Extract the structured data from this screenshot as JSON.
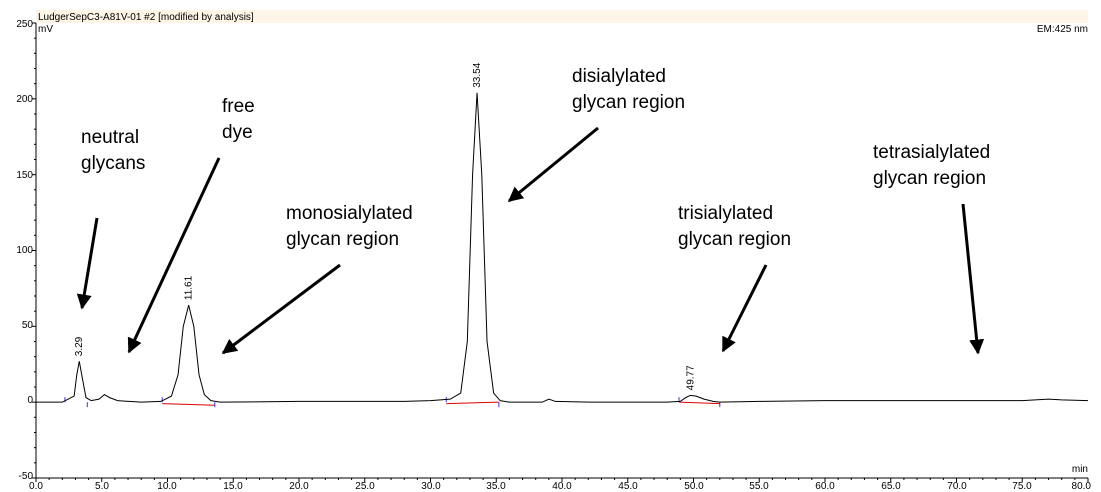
{
  "chart_data": {
    "type": "line",
    "title": "LudgerSepC3-A81V-01 #2 [modified by analysis]",
    "y_unit": "mV",
    "x_unit": "min",
    "detector": "EM:425 nm",
    "xlim": [
      0,
      80
    ],
    "ylim": [
      -50,
      250
    ],
    "x_ticks": [
      "0.0",
      "5.0",
      "10.0",
      "15.0",
      "20.0",
      "25.0",
      "30.0",
      "35.0",
      "40.0",
      "45.0",
      "50.0",
      "55.0",
      "60.0",
      "65.0",
      "70.0",
      "75.0",
      "80.0"
    ],
    "y_ticks": [
      "250",
      "200",
      "150",
      "100",
      "50",
      "0",
      "-50"
    ],
    "series": [
      {
        "color": "#000000",
        "x": [
          0,
          2,
          2.9,
          3.1,
          3.29,
          3.5,
          3.8,
          4.2,
          4.8,
          5.2,
          5.6,
          6.2,
          8,
          9.5,
          10.3,
          10.8,
          11.2,
          11.61,
          12.0,
          12.4,
          12.8,
          13.3,
          14,
          20,
          28,
          30,
          31.5,
          32.3,
          32.8,
          33.2,
          33.54,
          33.9,
          34.3,
          34.8,
          35.3,
          36,
          38.5,
          39,
          39.5,
          42,
          48,
          49,
          49.4,
          49.77,
          50.2,
          50.8,
          51.5,
          52,
          55,
          60,
          65,
          70,
          75,
          77,
          78,
          80
        ],
        "y": [
          0,
          0,
          4,
          18,
          27,
          17,
          3,
          1,
          2,
          5,
          3,
          1,
          0,
          0.5,
          4,
          18,
          50,
          64,
          50,
          18,
          5,
          1,
          0,
          0.5,
          0.5,
          1,
          2,
          6,
          40,
          150,
          204,
          150,
          40,
          6,
          1,
          0,
          0,
          2,
          0.5,
          0,
          0,
          0.5,
          3,
          4.5,
          4,
          2,
          0.5,
          0,
          0.5,
          1,
          1,
          1,
          1,
          2,
          1.5,
          1
        ]
      }
    ],
    "peak_labels": [
      {
        "x": 3.29,
        "y": 27,
        "text": "3.29"
      },
      {
        "x": 11.61,
        "y": 64,
        "text": "11.61"
      },
      {
        "x": 33.54,
        "y": 204,
        "text": "33.54"
      },
      {
        "x": 49.77,
        "y": 4.5,
        "text": "49.77"
      }
    ],
    "baselines": [
      {
        "x": [
          9.6,
          13.6
        ],
        "y": [
          -1,
          -2
        ]
      },
      {
        "x": [
          31.2,
          35.2
        ],
        "y": [
          -1,
          0
        ]
      },
      {
        "x": [
          48.9,
          52.0
        ],
        "y": [
          0,
          -1
        ]
      }
    ],
    "integration_marks": [
      {
        "x": 2.2,
        "type": "start"
      },
      {
        "x": 3.9,
        "type": "end"
      },
      {
        "x": 9.6,
        "type": "start"
      },
      {
        "x": 13.6,
        "type": "end"
      },
      {
        "x": 31.2,
        "type": "start"
      },
      {
        "x": 35.2,
        "type": "end"
      },
      {
        "x": 48.9,
        "type": "start"
      },
      {
        "x": 52.0,
        "type": "end"
      }
    ],
    "annotations": [
      {
        "lines": [
          "neutral",
          "glycans"
        ]
      },
      {
        "lines": [
          "free",
          "dye"
        ]
      },
      {
        "lines": [
          "monosialylated",
          "glycan region"
        ]
      },
      {
        "lines": [
          "disialylated",
          "glycan region"
        ]
      },
      {
        "lines": [
          "trisialylated",
          "glycan region"
        ]
      },
      {
        "lines": [
          "tetrasialylated",
          "glycan region"
        ]
      }
    ]
  }
}
